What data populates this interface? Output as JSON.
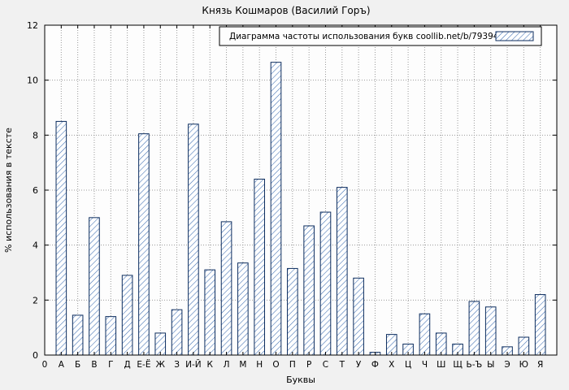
{
  "window": {
    "title": "Князь Кошмаров (Василий Горъ)"
  },
  "colors": {
    "background": "#f1f1f1",
    "plot_background": "#fdfdfd",
    "grid": "#9a9a9a",
    "axis": "#000000",
    "bar_border": "#0d2d5e",
    "bar_hatch": "#3a6bb0",
    "bar_fill": "#ffffff"
  },
  "chart_data": {
    "type": "bar",
    "title": "Князь Кошмаров (Василий Горъ)",
    "legend": "Диаграмма частоты использования букв coollib.net/b/793949",
    "legend_position": "top",
    "xlabel": "Буквы",
    "ylabel": "% использования в тексте",
    "ylim": [
      0,
      12
    ],
    "yticks": [
      0,
      2,
      4,
      6,
      8,
      10,
      12
    ],
    "origin_label": "0",
    "grid": true,
    "categories": [
      "А",
      "Б",
      "В",
      "Г",
      "Д",
      "Е-Ё",
      "Ж",
      "З",
      "И-Й",
      "К",
      "Л",
      "М",
      "Н",
      "О",
      "П",
      "Р",
      "С",
      "Т",
      "У",
      "Ф",
      "Х",
      "Ц",
      "Ч",
      "Ш",
      "Щ",
      "Ь-Ъ",
      "Ы",
      "Э",
      "Ю",
      "Я"
    ],
    "values": [
      8.5,
      1.45,
      5.0,
      1.4,
      2.9,
      8.05,
      0.8,
      1.65,
      8.4,
      3.1,
      4.85,
      3.35,
      6.4,
      10.65,
      3.15,
      4.7,
      5.2,
      6.1,
      2.8,
      0.1,
      0.75,
      0.4,
      1.5,
      0.8,
      0.4,
      1.95,
      1.75,
      0.3,
      0.65,
      2.2
    ]
  }
}
